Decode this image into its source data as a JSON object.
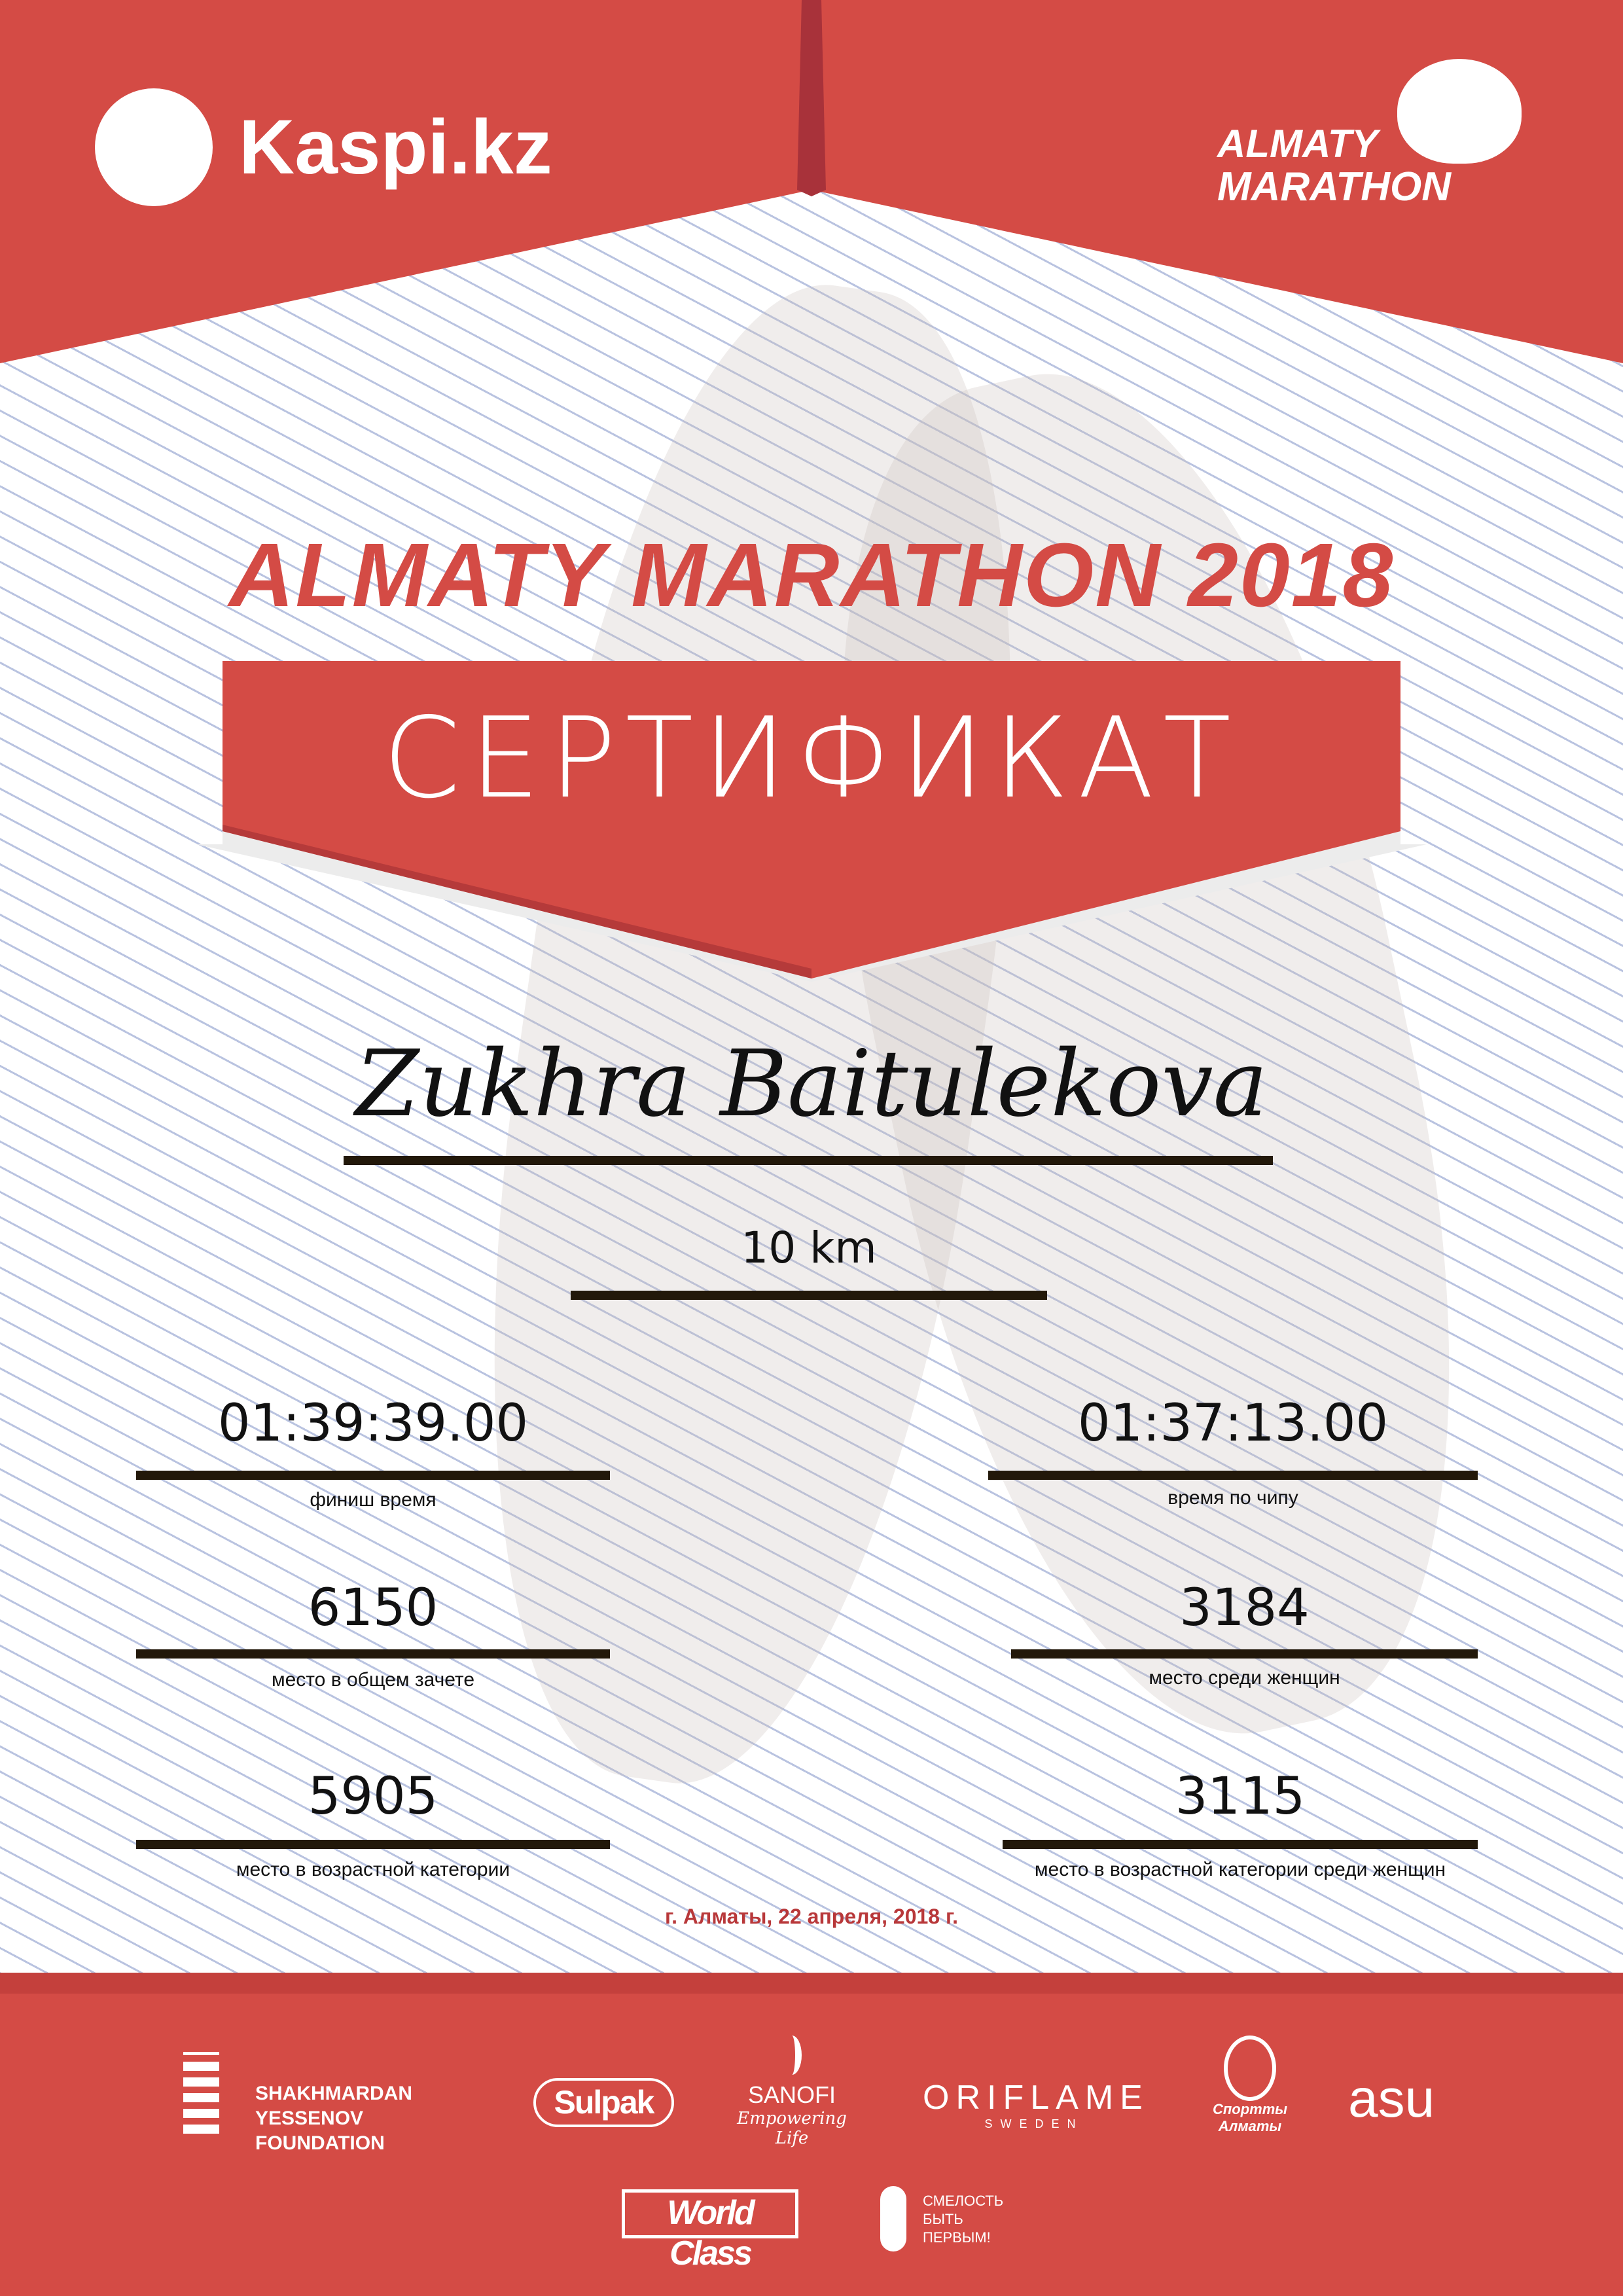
{
  "colors": {
    "brand_red": "#d44b45",
    "date_red": "#b8383a",
    "line": "#22180a"
  },
  "header": {
    "sponsor_logo": "Kaspi.kz",
    "event_logo_line1": "ALMATY",
    "event_logo_line2": "MARATHON"
  },
  "event_title": "ALMATY MARATHON 2018",
  "banner": "СЕРТИФИКАТ",
  "participant_name": "Zukhra Baitulekova",
  "distance": "10 km",
  "results": {
    "finish_time": {
      "value": "01:39:39.00",
      "label": "финиш время"
    },
    "chip_time": {
      "value": "01:37:13.00",
      "label": "время по чипу"
    },
    "overall_place": {
      "value": "6150",
      "label": "место в общем зачете"
    },
    "women_place": {
      "value": "3184",
      "label": "место среди женщин"
    },
    "age_place": {
      "value": "5905",
      "label": "место в возрастной категории"
    },
    "age_women_place": {
      "value": "3115",
      "label": "место в возрастной категории среди женщин"
    }
  },
  "date": "г. Алматы, 22 апреля, 2018 г.",
  "sponsors": {
    "yessenov": "SHAKHMARDAN YESSENOV FOUNDATION",
    "sulpak": "Sulpak",
    "sanofi": "SANOFI",
    "sanofi_tagline": "Empowering Life",
    "oriflame": "ORIFLAME",
    "oriflame_sub": "SWEDEN",
    "sport_almaty": "Спортты Алматы",
    "asu": "asu",
    "worldclass": "World Class",
    "fund_line1": "СМЕЛОСТЬ",
    "fund_line2": "БЫТЬ",
    "fund_line3": "ПЕРВЫМ!"
  }
}
